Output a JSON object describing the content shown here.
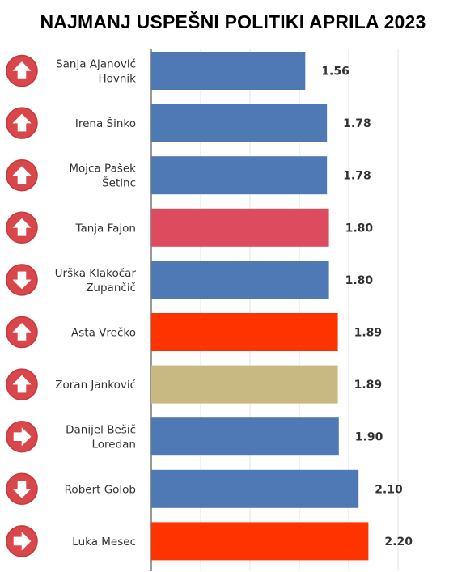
{
  "chart_data": {
    "type": "bar",
    "orientation": "horizontal",
    "title": "NAJMANJ USPEŠNI POLITIKI APRILA 2023",
    "xlabel": "",
    "ylabel": "",
    "xlim": [
      0,
      2.6
    ],
    "grid": true,
    "categories": [
      [
        "Sanja Ajanović",
        "Hovnik"
      ],
      [
        "Irena Šinko"
      ],
      [
        "Mojca Pašek",
        "Šetinc"
      ],
      [
        "Tanja Fajon"
      ],
      [
        "Urška Klakočar",
        "Zupančič"
      ],
      [
        "Asta Vrečko"
      ],
      [
        "Zoran Janković"
      ],
      [
        "Danijel Bešič",
        "Loredan"
      ],
      [
        "Robert Golob"
      ],
      [
        "Luka Mesec"
      ]
    ],
    "values": [
      1.56,
      1.78,
      1.78,
      1.8,
      1.8,
      1.89,
      1.89,
      1.9,
      2.1,
      2.2
    ],
    "value_labels": [
      "1.56",
      "1.78",
      "1.78",
      "1.80",
      "1.80",
      "1.89",
      "1.89",
      "1.90",
      "2.10",
      "2.20"
    ],
    "colors": [
      "#4e79b5",
      "#4e79b5",
      "#4e79b5",
      "#dc4c5e",
      "#4e79b5",
      "#ff3300",
      "#c8b882",
      "#4e79b5",
      "#4e79b5",
      "#ff3300"
    ],
    "trend_icons": [
      "arrow-up-icon",
      "arrow-up-icon",
      "arrow-up-icon",
      "arrow-up-icon",
      "arrow-down-icon",
      "arrow-up-icon",
      "arrow-up-icon",
      "arrow-right-icon",
      "arrow-down-icon",
      "arrow-right-icon"
    ],
    "icon_color": "#d9474a"
  }
}
